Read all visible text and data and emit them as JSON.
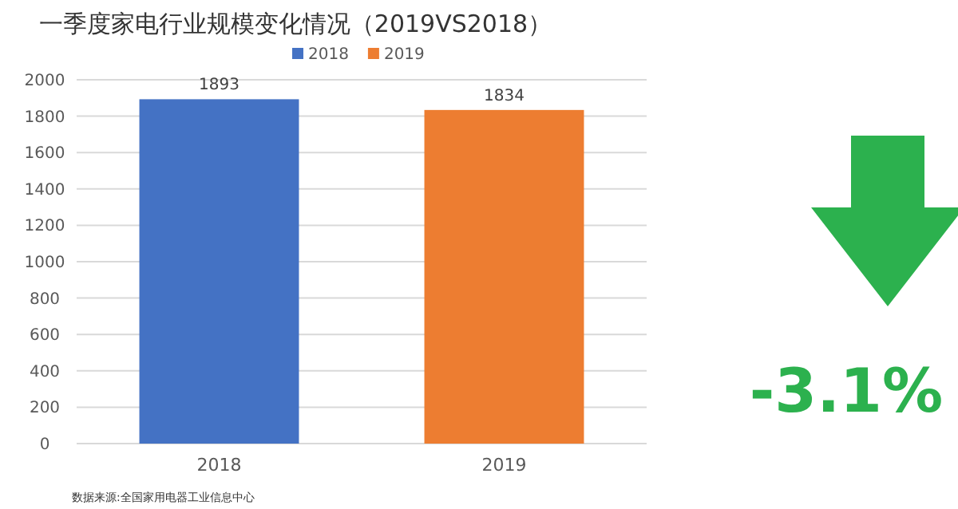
{
  "chart_data": {
    "type": "bar",
    "title": "一季度家电行业规模变化情况（2019VS2018）",
    "categories": [
      "2018",
      "2019"
    ],
    "series": [
      {
        "name": "2018",
        "color": "#4472c4",
        "values": [
          1893,
          null
        ]
      },
      {
        "name": "2019",
        "color": "#ed7d31",
        "values": [
          null,
          1834
        ]
      }
    ],
    "ylim": [
      0,
      2000
    ],
    "yticks": [
      0,
      200,
      400,
      600,
      800,
      1000,
      1200,
      1400,
      1600,
      1800,
      2000
    ],
    "grid": "y",
    "legend": "top",
    "data_labels": true,
    "annotations": [
      "-3.1%",
      "数据来源:全国家用电器工业信息中心"
    ]
  }
}
